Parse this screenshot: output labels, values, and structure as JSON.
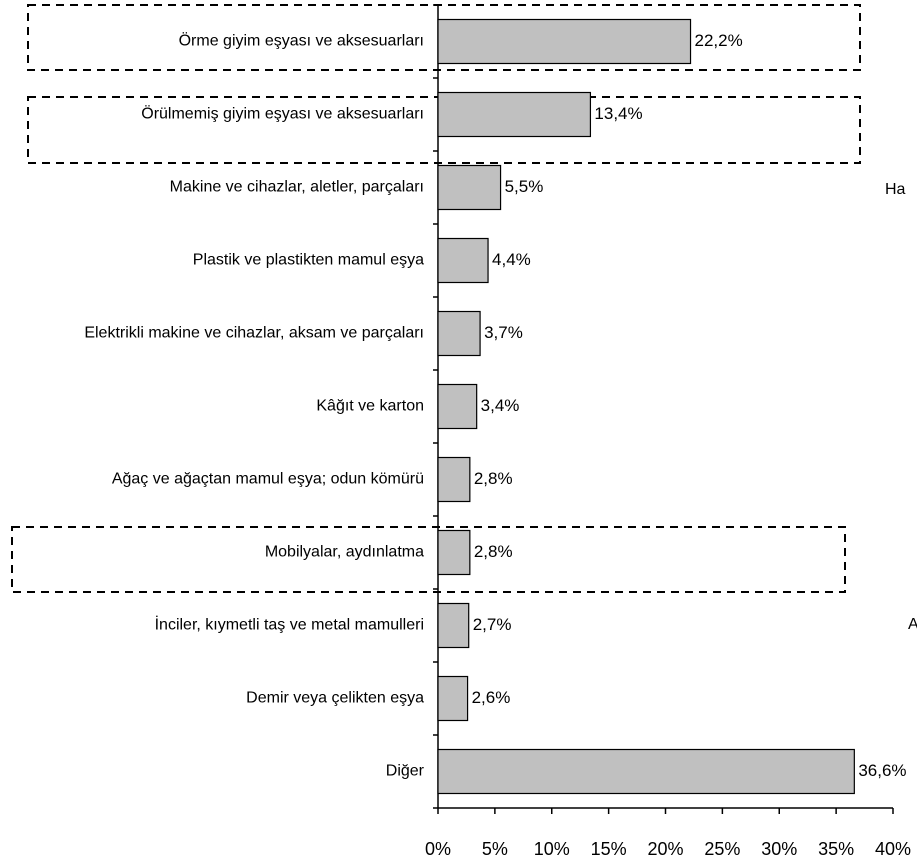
{
  "chart_data": {
    "type": "barh",
    "categories": [
      "Örme giyim eşyası ve aksesuarları",
      "Örülmemiş giyim eşyası ve aksesuarları",
      "Makine ve cihazlar, aletler, parçaları",
      "Plastik ve plastikten mamul eşya",
      "Elektrikli makine ve cihazlar, aksam ve parçaları",
      "Kâğıt ve karton",
      "Ağaç ve ağaçtan mamul eşya; odun kömürü",
      "Mobilyalar, aydınlatma",
      "İnciler, kıymetli taş ve metal mamulleri",
      "Demir veya çelikten eşya",
      "Diğer"
    ],
    "values": [
      22.2,
      13.4,
      5.5,
      4.4,
      3.7,
      3.4,
      2.8,
      2.8,
      2.7,
      2.6,
      36.6
    ],
    "value_labels": [
      "22,2%",
      "13,4%",
      "5,5%",
      "4,4%",
      "3,7%",
      "3,4%",
      "2,8%",
      "2,8%",
      "2,7%",
      "2,6%",
      "36,6%"
    ],
    "color": "#c0c0c0",
    "xlim": [
      0,
      40
    ],
    "xticks": [
      {
        "value": 0,
        "label": "0%"
      },
      {
        "value": 5,
        "label": "5%"
      },
      {
        "value": 10,
        "label": "10%"
      },
      {
        "value": 15,
        "label": "15%"
      },
      {
        "value": 20,
        "label": "20%"
      },
      {
        "value": 25,
        "label": "25%"
      },
      {
        "value": 30,
        "label": "30%"
      },
      {
        "value": 35,
        "label": "35%"
      },
      {
        "value": 40,
        "label": "40%"
      }
    ],
    "annotations": [
      "Ha",
      "A"
    ]
  }
}
